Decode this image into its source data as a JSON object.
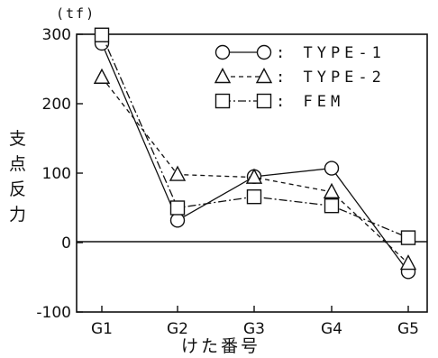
{
  "chart_data": {
    "type": "line",
    "unit_label": "(tf)",
    "ylabel": "支点反力",
    "xlabel": "けた番号",
    "categories": [
      "G1",
      "G2",
      "G3",
      "G4",
      "G5"
    ],
    "ylim": [
      -100,
      300
    ],
    "yticks": [
      -100,
      0,
      100,
      200,
      300
    ],
    "ytick_labels": [
      "-100",
      "0",
      "100",
      "200",
      "300"
    ],
    "zero_line": true,
    "legend_position": "top-right",
    "series": [
      {
        "name": ": TYPE-1",
        "marker": "circle",
        "line_style": "solid",
        "values": [
          287,
          32,
          95,
          107,
          -42
        ]
      },
      {
        "name": ": TYPE-2",
        "marker": "triangle",
        "line_style": "dashed",
        "values": [
          238,
          98,
          94,
          73,
          -30
        ]
      },
      {
        "name": ": FEM",
        "marker": "square",
        "line_style": "dashdot",
        "values": [
          299,
          50,
          66,
          53,
          7
        ]
      }
    ]
  }
}
